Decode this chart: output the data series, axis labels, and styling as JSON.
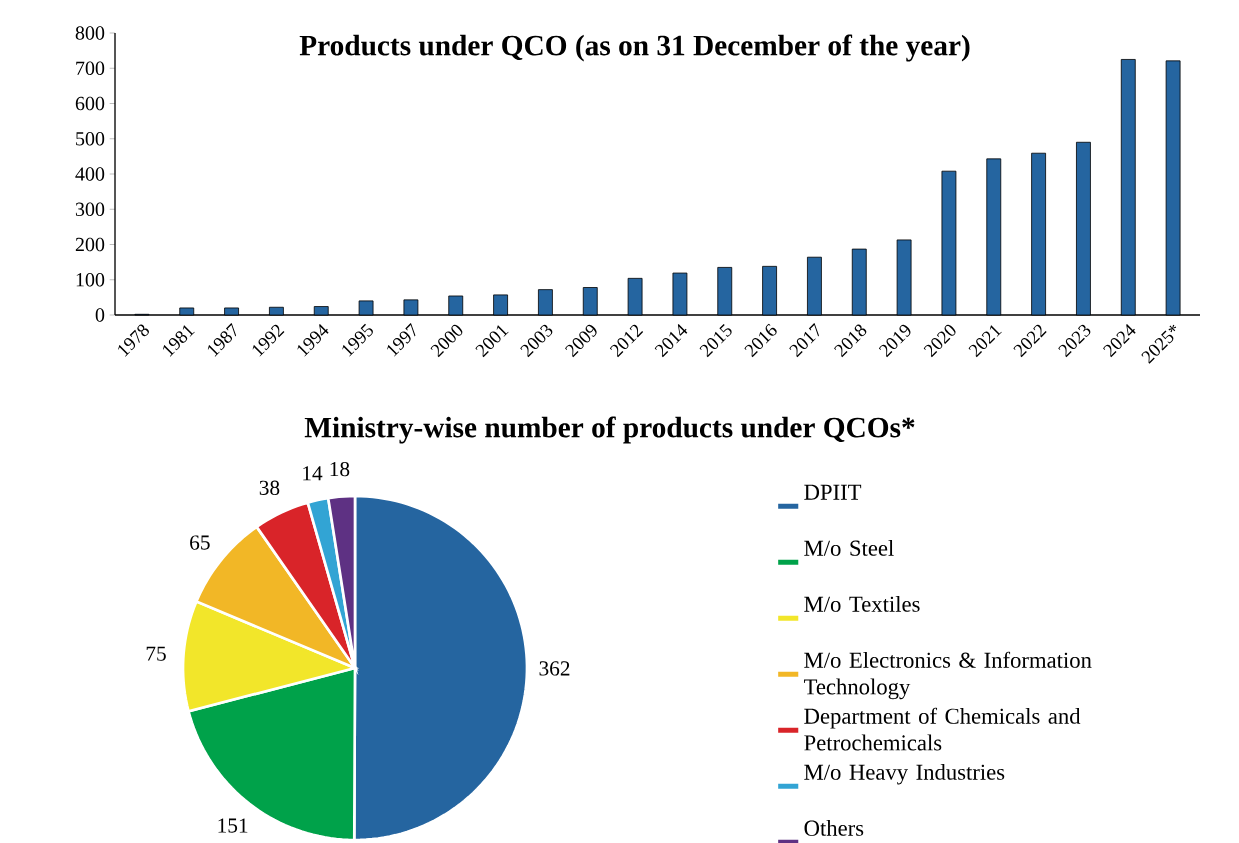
{
  "chart_data": [
    {
      "type": "bar",
      "title": "Products under QCO (as on 31 December of the year)",
      "categories": [
        "1978",
        "1981",
        "1987",
        "1992",
        "1994",
        "1995",
        "1997",
        "2000",
        "2001",
        "2003",
        "2009",
        "2012",
        "2014",
        "2015",
        "2016",
        "2017",
        "2018",
        "2019",
        "2020",
        "2021",
        "2022",
        "2023",
        "2024",
        "2025*"
      ],
      "values": [
        2,
        20,
        20,
        22,
        24,
        40,
        43,
        54,
        57,
        72,
        78,
        104,
        119,
        135,
        138,
        164,
        187,
        213,
        408,
        443,
        459,
        490,
        725,
        721
      ],
      "color": "#2565a0",
      "ylim": [
        0,
        800
      ],
      "yticks": [
        0,
        100,
        200,
        300,
        400,
        500,
        600,
        700,
        800
      ]
    },
    {
      "type": "pie",
      "title": "Ministry-wise number of products under QCOs*",
      "categories": [
        "DPIIT",
        "M/o Steel",
        "M/o Textiles",
        "M/o Electronics & Information Technology",
        "Department of Chemicals and Petrochemicals",
        "M/o Heavy Industries",
        "Others"
      ],
      "values": [
        362,
        151,
        75,
        65,
        38,
        14,
        18
      ],
      "colors": [
        "#2565a0",
        "#00a24a",
        "#f2e62a",
        "#f2b726",
        "#d92429",
        "#32a4d4",
        "#5e3183"
      ],
      "data_labels": true,
      "legend": "right"
    }
  ]
}
